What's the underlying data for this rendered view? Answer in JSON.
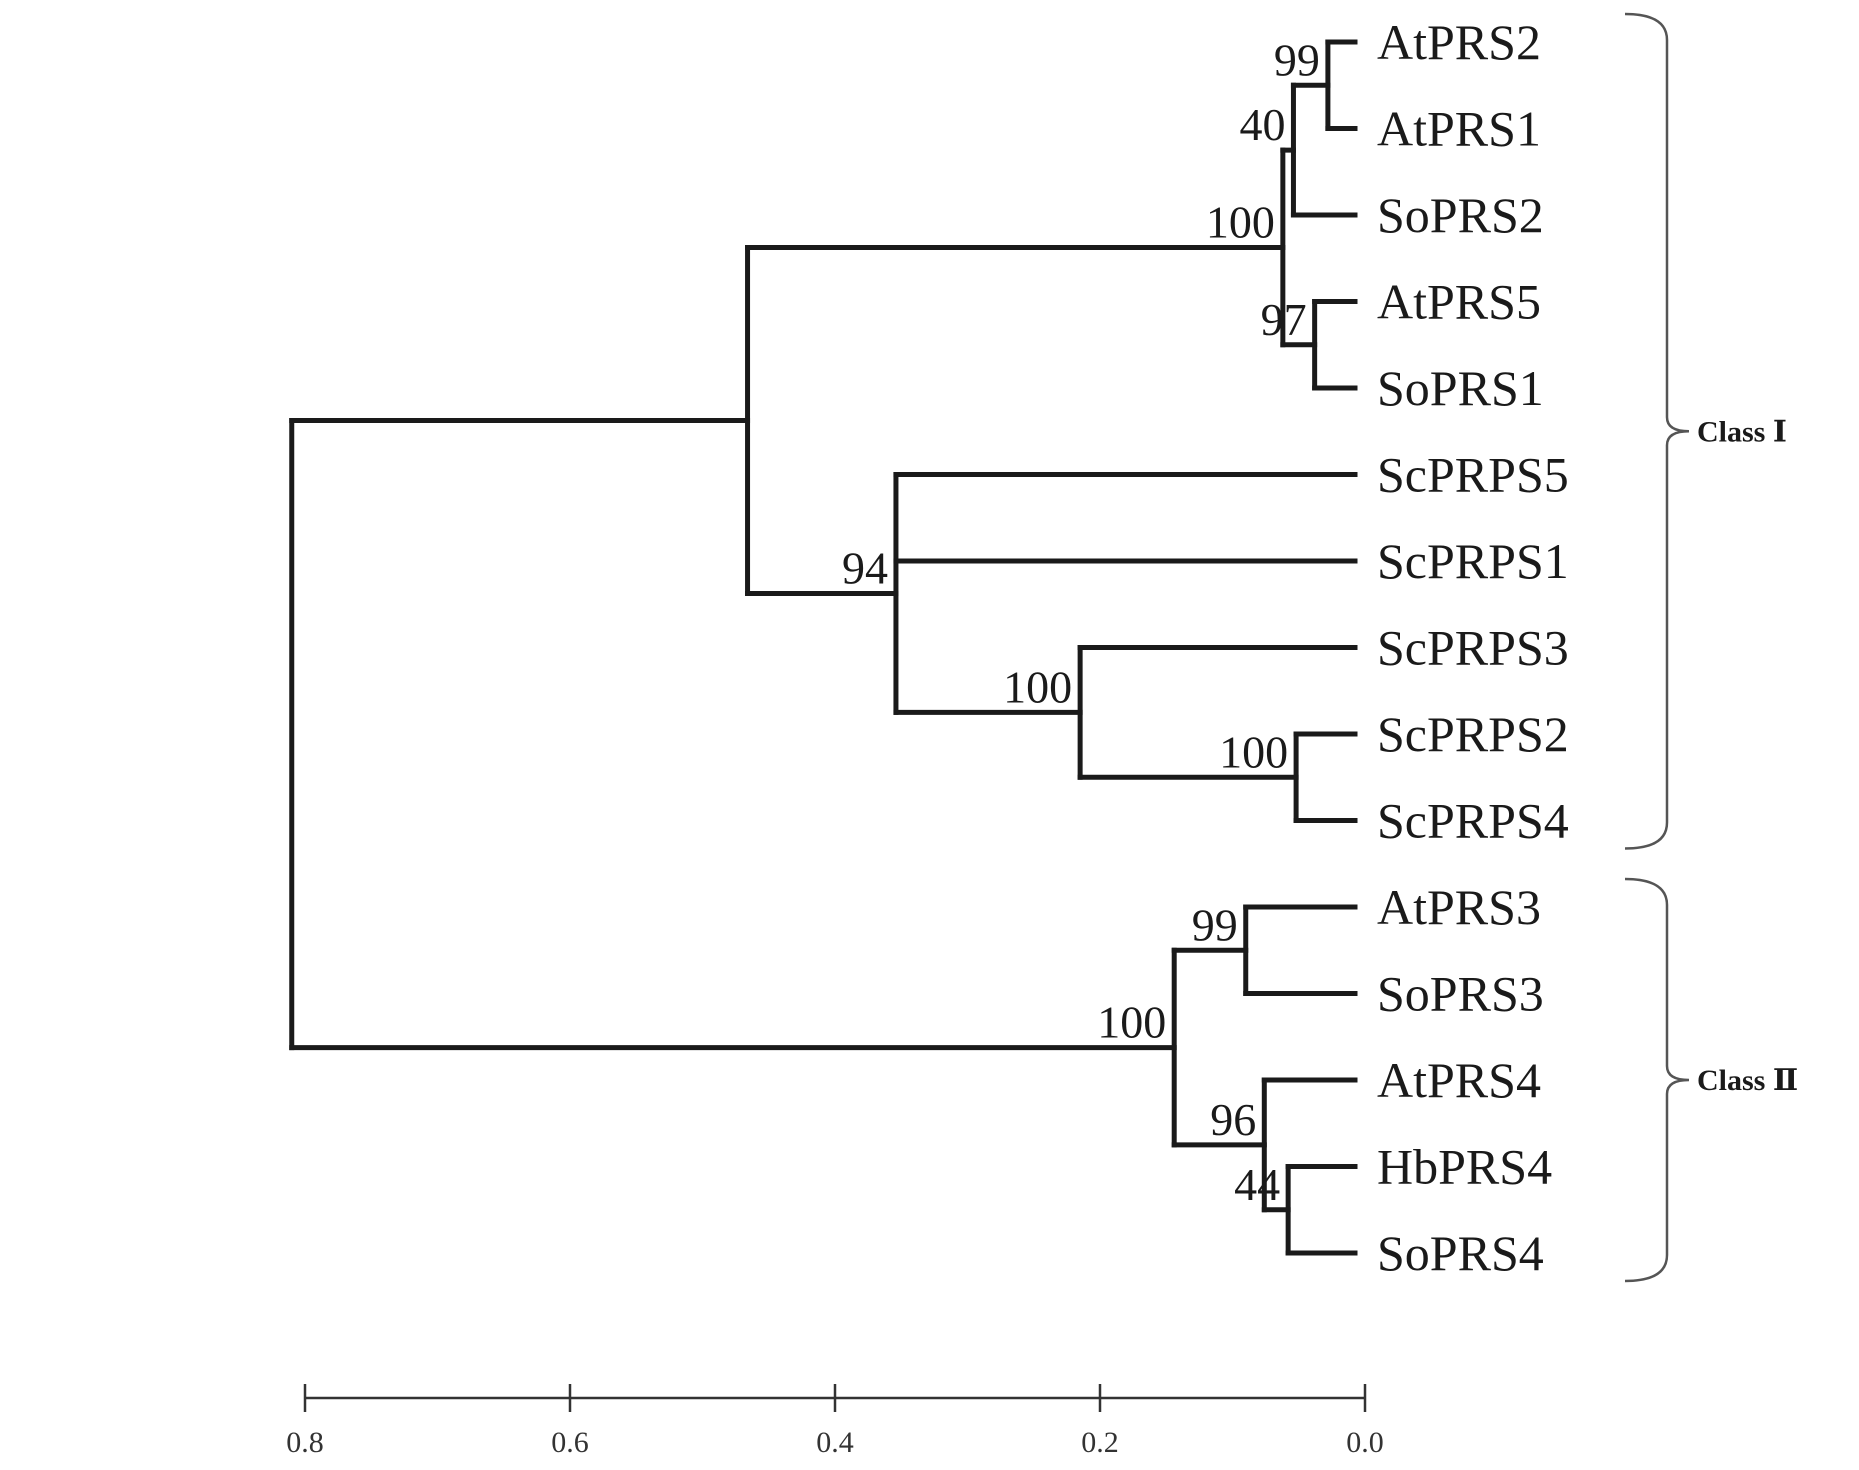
{
  "tree": {
    "leaves": [
      "AtPRS2",
      "AtPRS1",
      "SoPRS2",
      "AtPRS5",
      "SoPRS1",
      "ScPRPS5",
      "ScPRPS1",
      "ScPRPS3",
      "ScPRPS2",
      "ScPRPS4",
      "AtPRS3",
      "SoPRS3",
      "AtPRS4",
      "HbPRS4",
      "SoPRS4"
    ],
    "nodes": [
      {
        "id": "n_at21",
        "children": [
          0,
          1
        ],
        "distance": 0.028,
        "support": "99"
      },
      {
        "id": "n_at_so2",
        "children": [
          "n_at21",
          2
        ],
        "distance": 0.054,
        "support": "40"
      },
      {
        "id": "n_at5_so1",
        "children": [
          3,
          4
        ],
        "distance": 0.038,
        "support": "97"
      },
      {
        "id": "n_cl1a",
        "children": [
          "n_at_so2",
          "n_at5_so1"
        ],
        "distance": 0.062,
        "support": "100"
      },
      {
        "id": "n_sc24",
        "children": [
          8,
          9
        ],
        "distance": 0.052,
        "support": "100"
      },
      {
        "id": "n_sc3_24",
        "children": [
          7,
          "n_sc24"
        ],
        "distance": 0.215,
        "support": "100"
      },
      {
        "id": "n_sc_all",
        "children": [
          5,
          6,
          "n_sc3_24"
        ],
        "distance": 0.354,
        "support": "94"
      },
      {
        "id": "n_class1",
        "children": [
          "n_cl1a",
          "n_sc_all"
        ],
        "distance": 0.466,
        "support": ""
      },
      {
        "id": "n_at3_so3",
        "children": [
          10,
          11
        ],
        "distance": 0.09,
        "support": "99"
      },
      {
        "id": "n_hb_so4",
        "children": [
          13,
          14
        ],
        "distance": 0.058,
        "support": "44"
      },
      {
        "id": "n_at4_grp",
        "children": [
          12,
          "n_hb_so4"
        ],
        "distance": 0.076,
        "support": "96"
      },
      {
        "id": "n_class2",
        "children": [
          "n_at3_so3",
          "n_at4_grp"
        ],
        "distance": 0.144,
        "support": "100"
      },
      {
        "id": "n_root",
        "children": [
          "n_class1",
          "n_class2"
        ],
        "distance": 0.81,
        "support": ""
      }
    ],
    "classes": [
      {
        "label": "Class Ⅰ",
        "from": 0,
        "to": 9
      },
      {
        "label": "Class Ⅱ",
        "from": 10,
        "to": 14
      }
    ]
  },
  "axis": {
    "ticks": [
      0.8,
      0.6,
      0.4,
      0.2,
      0.0
    ],
    "tick_labels": [
      "0.8",
      "0.6",
      "0.4",
      "0.2",
      "0.0"
    ]
  }
}
